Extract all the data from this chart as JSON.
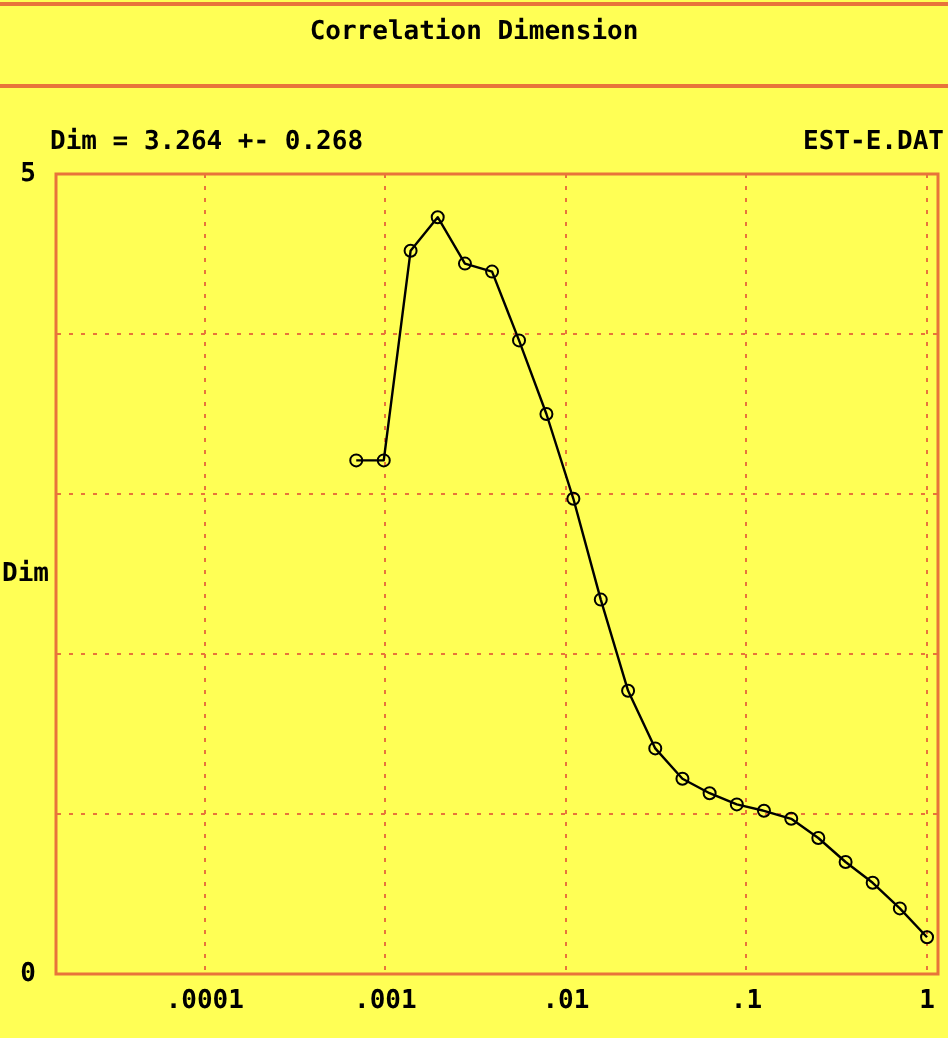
{
  "chart_data": {
    "type": "line",
    "title": "Correlation Dimension",
    "subtitle": "Dim = 3.264 +- 0.268",
    "annotations": [
      "EST-E.DAT"
    ],
    "ylabel": "Dim",
    "x": [
      0.00069,
      0.00098,
      0.00138,
      0.00195,
      0.00276,
      0.0039,
      0.0055,
      0.0078,
      0.011,
      0.0156,
      0.0221,
      0.03125,
      0.0442,
      0.0625,
      0.0884,
      0.125,
      0.177,
      0.25,
      0.354,
      0.5,
      0.707,
      1
    ],
    "values": [
      3.21,
      3.21,
      4.52,
      4.73,
      4.44,
      4.39,
      3.96,
      3.5,
      2.97,
      2.34,
      1.77,
      1.41,
      1.22,
      1.13,
      1.06,
      1.02,
      0.97,
      0.85,
      0.7,
      0.57,
      0.41,
      0.23
    ],
    "color": "#000000",
    "marker": "circle",
    "log": "x",
    "grid": true,
    "xlim": [
      1.5e-05,
      1.15
    ],
    "xticks": [
      {
        "value": 0.0001,
        "label": ".0001"
      },
      {
        "value": 0.001,
        "label": ".001"
      },
      {
        "value": 0.01,
        "label": ".01"
      },
      {
        "value": 0.1,
        "label": ".1"
      },
      1
    ],
    "ylim": [
      0,
      5
    ],
    "yticks": [
      0,
      {
        "value": 1,
        "label": null
      },
      {
        "value": 2,
        "label": null
      },
      {
        "value": 3,
        "label": null
      },
      {
        "value": 4,
        "label": null
      },
      5
    ]
  }
}
